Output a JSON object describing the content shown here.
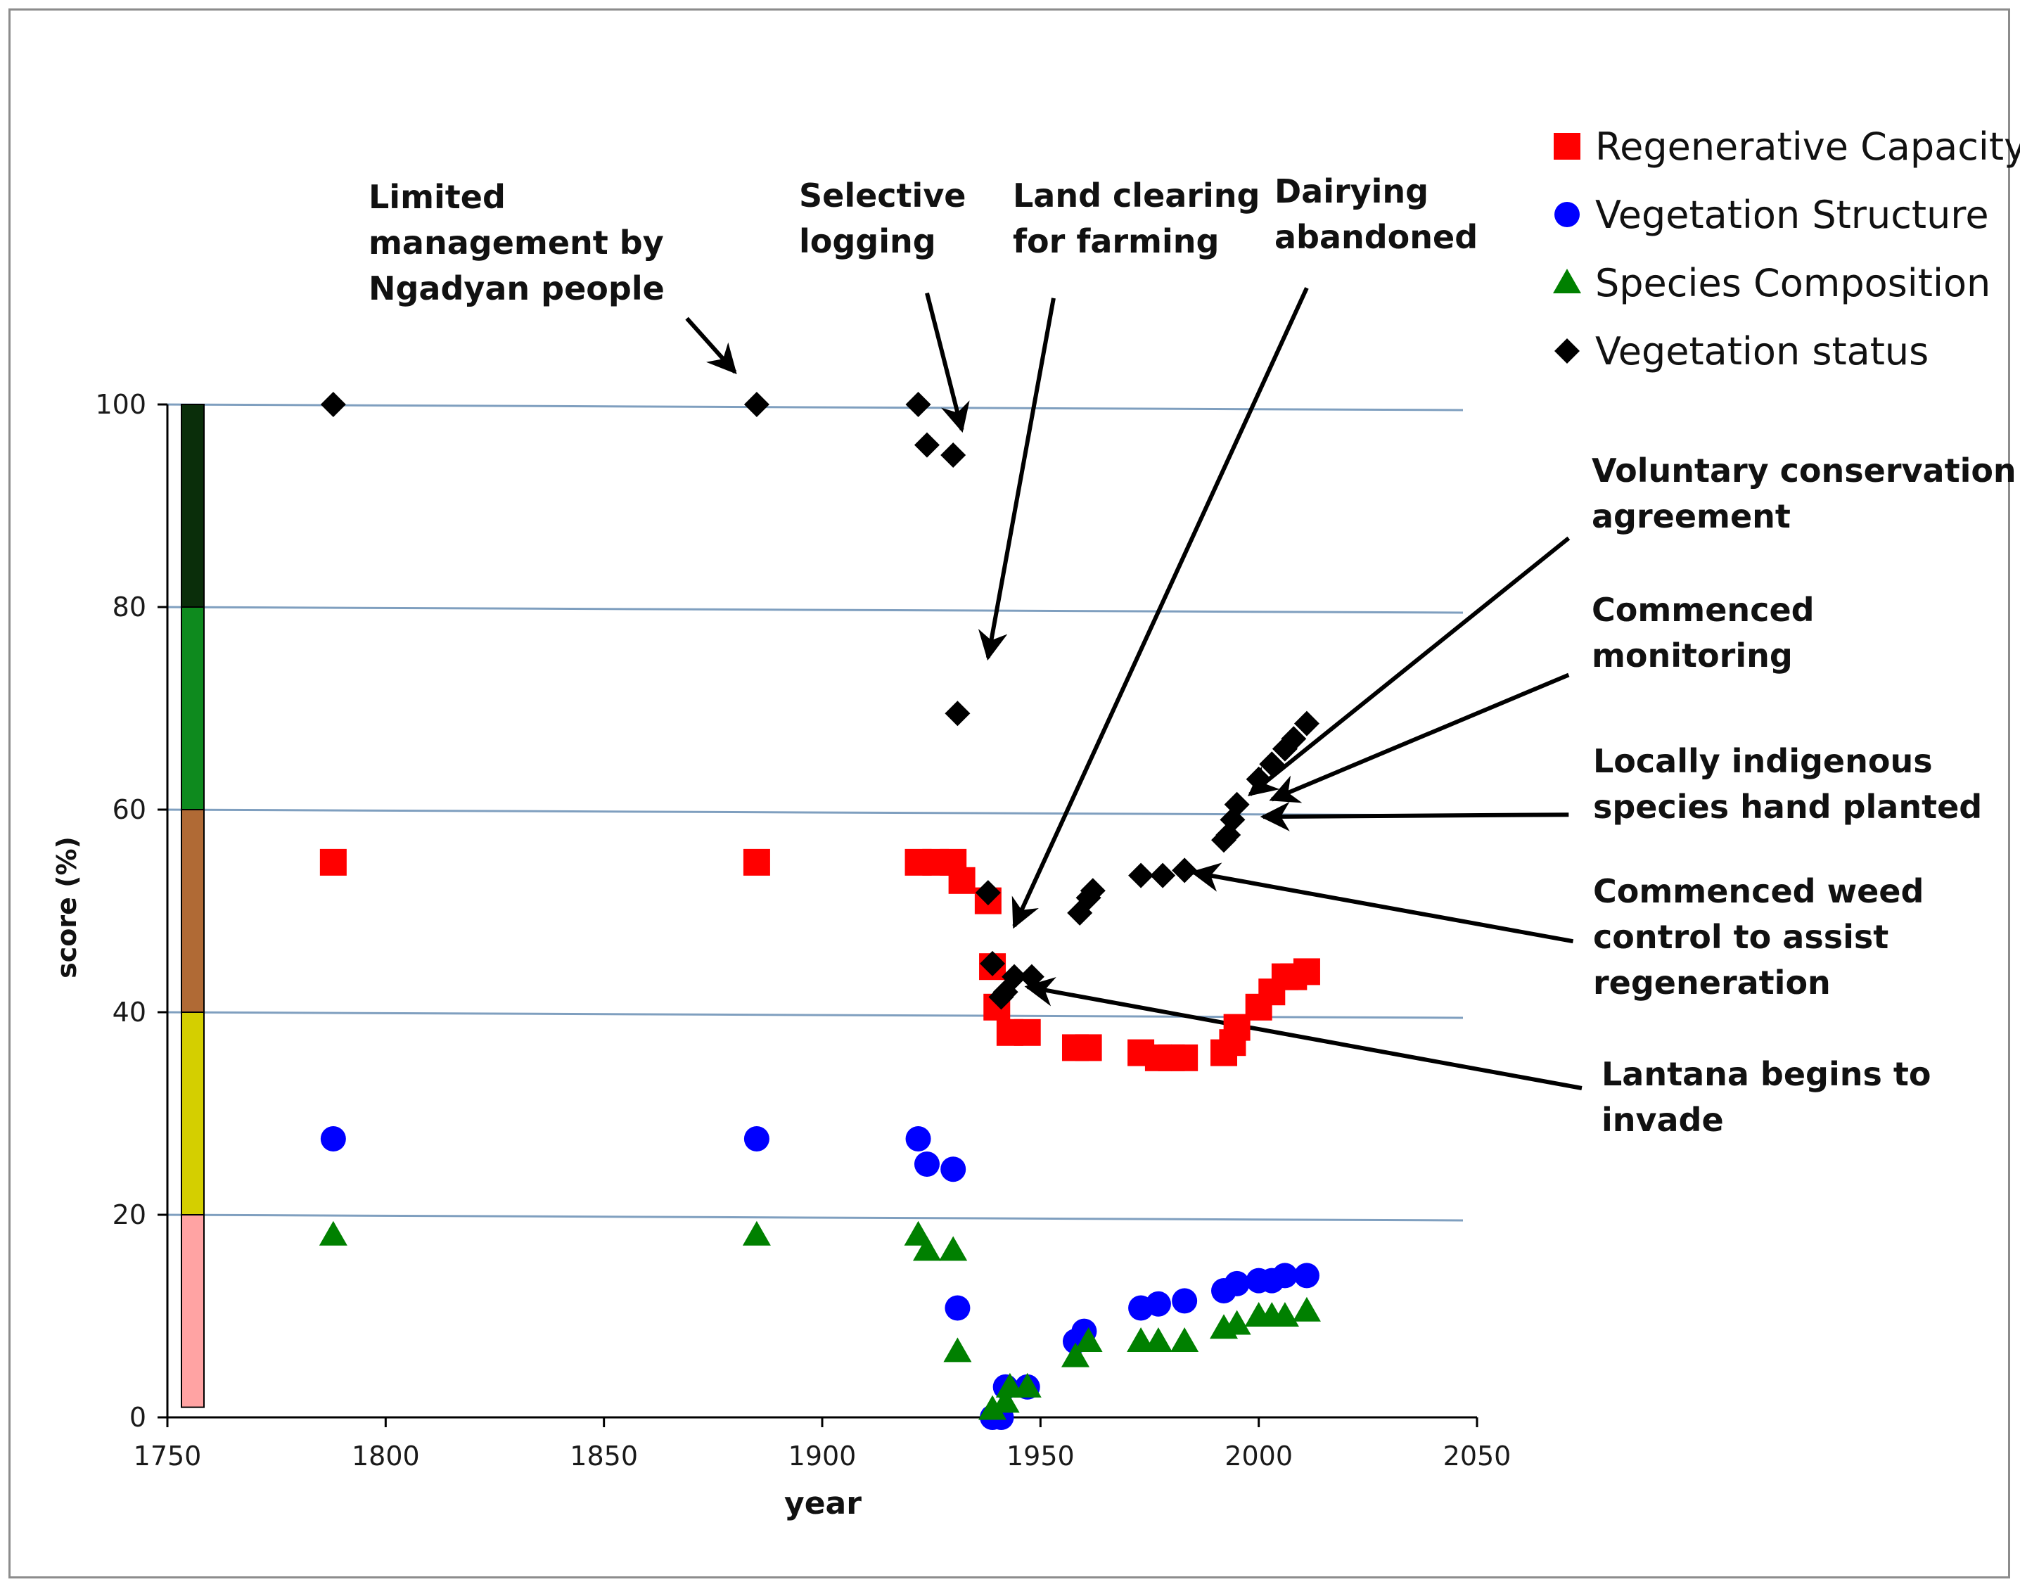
{
  "chart_data": {
    "type": "scatter",
    "title": "",
    "xlabel": "year",
    "ylabel": "score  (%)",
    "xlim": [
      1750,
      2050
    ],
    "ylim": [
      0,
      100
    ],
    "xticks": [
      1750,
      1800,
      1850,
      1900,
      1950,
      2000,
      2050
    ],
    "yticks": [
      0,
      20,
      40,
      60,
      80,
      100
    ],
    "grid": "horizontal",
    "legend_position": "top-right",
    "colors": {
      "regen": "#ff0000",
      "structure": "#0000ff",
      "composition": "#008000",
      "status": "#000000",
      "gridline": "#7f9fbf"
    },
    "series": [
      {
        "key": "regen",
        "name": "Regenerative Capacity",
        "marker": "square",
        "points": [
          [
            1788,
            54.8
          ],
          [
            1885,
            54.8
          ],
          [
            1922,
            54.8
          ],
          [
            1926,
            54.8
          ],
          [
            1930,
            54.8
          ],
          [
            1932,
            53
          ],
          [
            1938,
            51
          ],
          [
            1939,
            44.5
          ],
          [
            1940,
            40.5
          ],
          [
            1943,
            38
          ],
          [
            1947,
            38
          ],
          [
            1958,
            36.5
          ],
          [
            1961,
            36.5
          ],
          [
            1973,
            36
          ],
          [
            1977,
            35.5
          ],
          [
            1980,
            35.5
          ],
          [
            1983,
            35.5
          ],
          [
            1992,
            36
          ],
          [
            1994,
            37
          ],
          [
            1995,
            38.5
          ],
          [
            2000,
            40.5
          ],
          [
            2003,
            42
          ],
          [
            2006,
            43.5
          ],
          [
            2008,
            43.5
          ],
          [
            2011,
            44
          ]
        ]
      },
      {
        "key": "structure",
        "name": "Vegetation Structure",
        "marker": "circle",
        "points": [
          [
            1788,
            27.5
          ],
          [
            1885,
            27.5
          ],
          [
            1922,
            27.5
          ],
          [
            1924,
            25
          ],
          [
            1930,
            24.5
          ],
          [
            1931,
            10.8
          ],
          [
            1939,
            0
          ],
          [
            1941,
            0
          ],
          [
            1942,
            3
          ],
          [
            1947,
            3
          ],
          [
            1958,
            7.5
          ],
          [
            1960,
            8.5
          ],
          [
            1973,
            10.8
          ],
          [
            1977,
            11.2
          ],
          [
            1983,
            11.5
          ],
          [
            1992,
            12.5
          ],
          [
            1995,
            13.2
          ],
          [
            2000,
            13.5
          ],
          [
            2003,
            13.5
          ],
          [
            2006,
            14
          ],
          [
            2011,
            14
          ]
        ]
      },
      {
        "key": "composition",
        "name": "Species Composition",
        "marker": "triangle",
        "points": [
          [
            1788,
            18
          ],
          [
            1885,
            18
          ],
          [
            1922,
            18
          ],
          [
            1924,
            16.5
          ],
          [
            1930,
            16.5
          ],
          [
            1931,
            6.5
          ],
          [
            1939,
            0.8
          ],
          [
            1942,
            1.5
          ],
          [
            1943,
            3
          ],
          [
            1947,
            3
          ],
          [
            1958,
            6
          ],
          [
            1961,
            7.5
          ],
          [
            1973,
            7.5
          ],
          [
            1977,
            7.5
          ],
          [
            1983,
            7.5
          ],
          [
            1992,
            8.8
          ],
          [
            1995,
            9.2
          ],
          [
            2000,
            10
          ],
          [
            2003,
            10
          ],
          [
            2006,
            10
          ],
          [
            2011,
            10.5
          ]
        ]
      },
      {
        "key": "status",
        "name": "Vegetation status",
        "marker": "diamond",
        "points": [
          [
            1788,
            100
          ],
          [
            1885,
            100
          ],
          [
            1922,
            100
          ],
          [
            1924,
            96
          ],
          [
            1930,
            95
          ],
          [
            1931,
            69.5
          ],
          [
            1938,
            51.8
          ],
          [
            1939,
            44.8
          ],
          [
            1941,
            41.5
          ],
          [
            1942,
            42
          ],
          [
            1944,
            43.5
          ],
          [
            1948,
            43.5
          ],
          [
            1959,
            49.8
          ],
          [
            1961,
            51.3
          ],
          [
            1962,
            52
          ],
          [
            1973,
            53.5
          ],
          [
            1978,
            53.5
          ],
          [
            1983,
            54
          ],
          [
            1992,
            57
          ],
          [
            1993,
            57.5
          ],
          [
            1994,
            59
          ],
          [
            1995,
            60.5
          ],
          [
            2000,
            63
          ],
          [
            2003,
            64.5
          ],
          [
            2006,
            66
          ],
          [
            2008,
            67
          ],
          [
            2011,
            68.5
          ]
        ]
      }
    ],
    "annotations": [
      {
        "key": "limited",
        "lines": [
          "Limited",
          "management by",
          "Ngadyan people"
        ],
        "arrow_from_year_pct": [
          1869,
          108.5
        ],
        "arrow_to": [
          1880,
          103.2
        ]
      },
      {
        "key": "logging",
        "lines": [
          "Selective",
          "logging"
        ],
        "arrow_from_year_pct": [
          1924,
          111
        ],
        "arrow_to": [
          1932,
          97.5
        ]
      },
      {
        "key": "clearing",
        "lines": [
          "Land clearing",
          "for farming"
        ],
        "arrow_from_year_pct": [
          1953,
          110.5
        ],
        "arrow_to": [
          1938,
          75
        ]
      },
      {
        "key": "dairy",
        "lines": [
          "Dairying",
          "abandoned"
        ],
        "arrow_from_year_pct": [
          2011,
          111.5
        ],
        "arrow_to": [
          1944,
          48.5
        ]
      },
      {
        "key": "voluntary",
        "lines": [
          "Voluntary conservation",
          "agreement"
        ],
        "arrow_from_year_pct": [
          2071,
          86.8
        ],
        "arrow_to": [
          1998,
          61.5
        ]
      },
      {
        "key": "monitoring",
        "lines": [
          "Commenced",
          "monitoring"
        ],
        "arrow_from_year_pct": [
          2071,
          73.3
        ],
        "arrow_to": [
          2003,
          61
        ]
      },
      {
        "key": "planted",
        "lines": [
          "Locally indigenous",
          "species hand planted"
        ],
        "arrow_from_year_pct": [
          2071,
          59.5
        ],
        "arrow_to": [
          2001,
          59.3
        ]
      },
      {
        "key": "weed",
        "lines": [
          "Commenced weed",
          "control to assist",
          "regeneration"
        ],
        "arrow_from_year_pct": [
          2072,
          47
        ],
        "arrow_to": [
          1985,
          53.8
        ]
      },
      {
        "key": "lantana",
        "lines": [
          "Lantana begins to",
          "invade"
        ],
        "arrow_from_year_pct": [
          2074,
          32.5
        ],
        "arrow_to": [
          1947,
          42.5
        ]
      }
    ],
    "status_bar": [
      {
        "from": 80,
        "to": 100,
        "color": "#0a2e0a"
      },
      {
        "from": 60,
        "to": 80,
        "color": "#0e8a1e"
      },
      {
        "from": 40,
        "to": 60,
        "color": "#b06a35"
      },
      {
        "from": 20,
        "to": 40,
        "color": "#d4cf00"
      },
      {
        "from": 1,
        "to": 20,
        "color": "#ffa3a3"
      }
    ]
  }
}
